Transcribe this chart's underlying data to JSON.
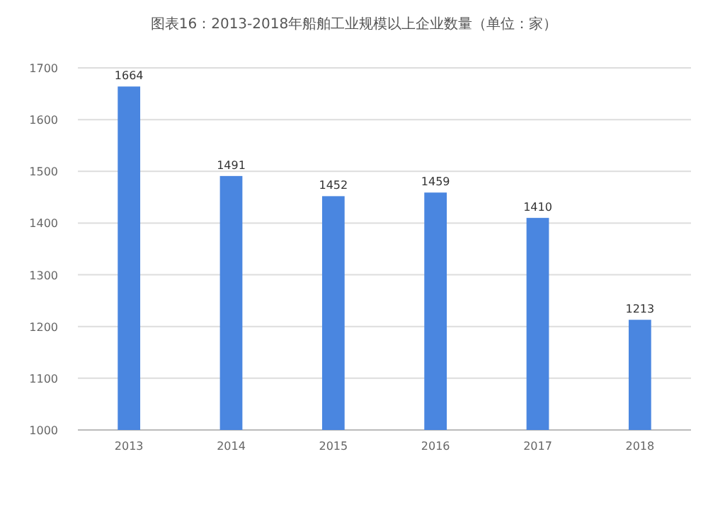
{
  "chart_data": {
    "type": "bar",
    "title": "图表16：2013-2018年船舶工业规模以上企业数量（单位：家）",
    "categories": [
      "2013",
      "2014",
      "2015",
      "2016",
      "2017",
      "2018"
    ],
    "values": [
      1664,
      1491,
      1452,
      1459,
      1410,
      1213
    ],
    "color": "#4a86e0",
    "ylim": [
      1000,
      1700
    ],
    "yticks": [
      1000,
      1100,
      1200,
      1300,
      1400,
      1500,
      1600,
      1700
    ],
    "grid": "y",
    "data_labels": true
  }
}
